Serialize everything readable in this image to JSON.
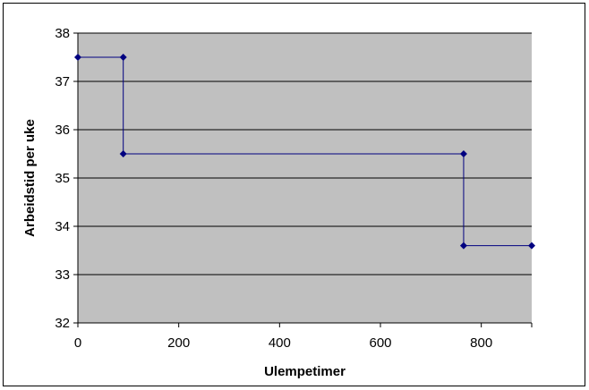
{
  "chart_data": {
    "type": "line",
    "title": "",
    "xlabel": "Ulempetimer",
    "ylabel": "Arbeidstid per uke",
    "xlim": [
      0,
      900
    ],
    "ylim": [
      32,
      38
    ],
    "x_ticks": [
      0,
      200,
      400,
      600,
      800
    ],
    "y_ticks": [
      32,
      33,
      34,
      35,
      36,
      37,
      38
    ],
    "grid": "horizontal",
    "legend": "none",
    "series": [
      {
        "x": [
          0,
          90,
          90,
          765,
          765,
          900
        ],
        "y": [
          37.5,
          37.5,
          35.5,
          35.5,
          33.6,
          33.6
        ]
      }
    ],
    "colors": {
      "plot_background": "#c0c0c0",
      "series_line": "#000080",
      "gridline": "#000000"
    }
  }
}
